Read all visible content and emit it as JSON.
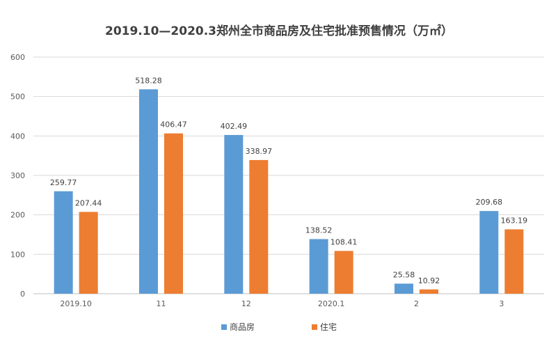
{
  "chart_data": {
    "type": "bar",
    "title": "2019.10—2020.3郑州全市商品房及住宅批准预售情况（万㎡）",
    "categories": [
      "2019.10",
      "11",
      "12",
      "2020.1",
      "2",
      "3"
    ],
    "series": [
      {
        "name": "商品房",
        "color": "#5B9BD5",
        "values": [
          259.77,
          518.28,
          402.49,
          138.52,
          25.58,
          209.68
        ]
      },
      {
        "name": "住宅",
        "color": "#ED7D31",
        "values": [
          207.44,
          406.47,
          338.97,
          108.41,
          10.92,
          163.19
        ]
      }
    ],
    "ylim": [
      0,
      600
    ],
    "yticks": [
      0,
      100,
      200,
      300,
      400,
      500,
      600
    ],
    "grid": true,
    "legend": "bottom-center",
    "xlabel": "",
    "ylabel": ""
  }
}
